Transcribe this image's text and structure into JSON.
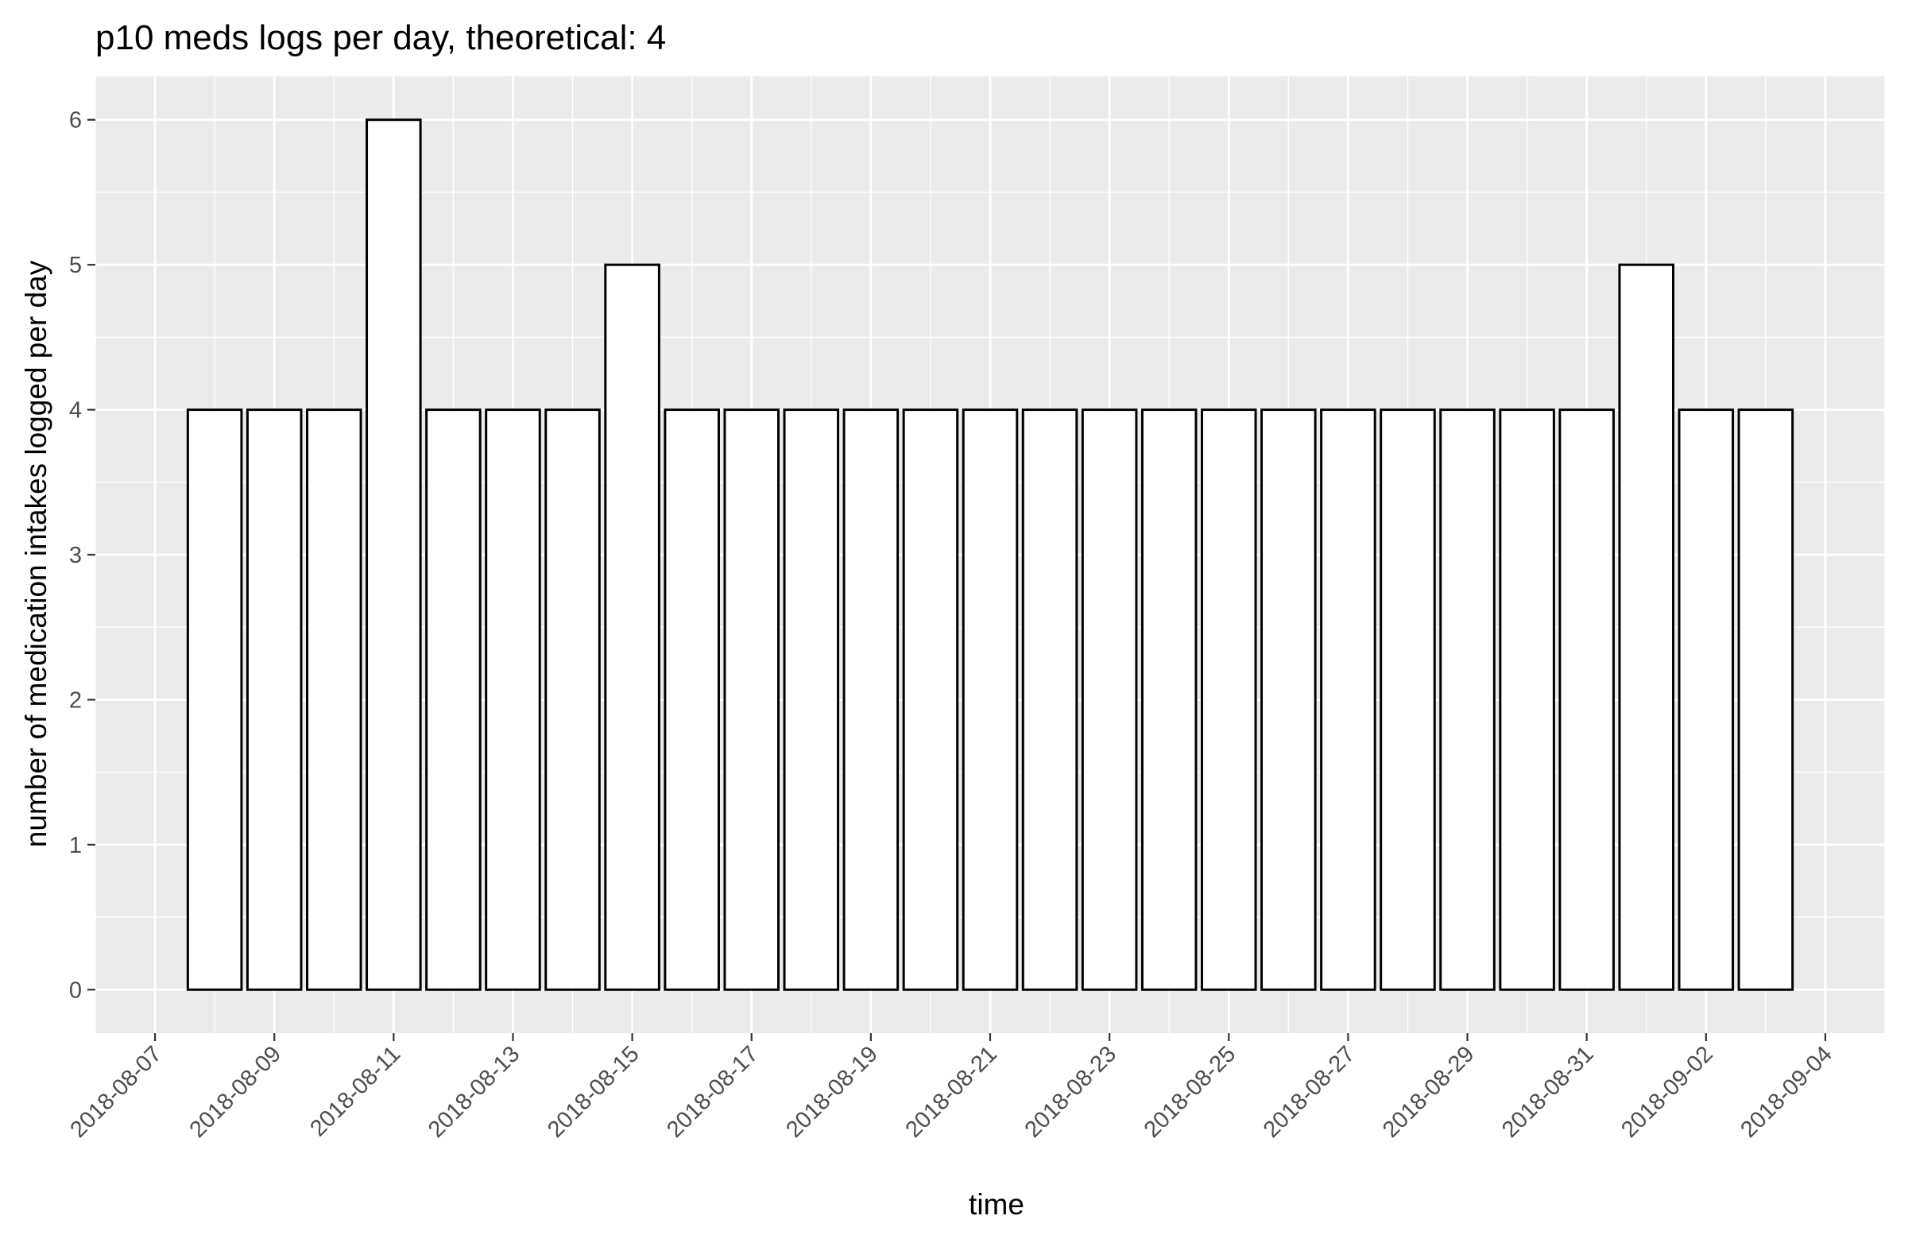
{
  "chart_data": {
    "type": "bar",
    "title": "p10 meds logs per day, theoretical: 4",
    "xlabel": "time",
    "ylabel": "number of medication intakes logged per day",
    "x": [
      "2018-08-08",
      "2018-08-09",
      "2018-08-10",
      "2018-08-11",
      "2018-08-12",
      "2018-08-13",
      "2018-08-14",
      "2018-08-15",
      "2018-08-16",
      "2018-08-17",
      "2018-08-18",
      "2018-08-19",
      "2018-08-20",
      "2018-08-21",
      "2018-08-22",
      "2018-08-23",
      "2018-08-24",
      "2018-08-25",
      "2018-08-26",
      "2018-08-27",
      "2018-08-28",
      "2018-08-29",
      "2018-08-30",
      "2018-08-31",
      "2018-09-01",
      "2018-09-02",
      "2018-09-03"
    ],
    "values": [
      4,
      4,
      4,
      6,
      4,
      4,
      4,
      5,
      4,
      4,
      4,
      4,
      4,
      4,
      4,
      4,
      4,
      4,
      4,
      4,
      4,
      4,
      4,
      4,
      5,
      4,
      4
    ],
    "xlim": [
      "2018-08-06",
      "2018-09-05"
    ],
    "ylim": [
      -0.3,
      6.3
    ],
    "x_ticks": [
      "2018-08-07",
      "2018-08-09",
      "2018-08-11",
      "2018-08-13",
      "2018-08-15",
      "2018-08-17",
      "2018-08-19",
      "2018-08-21",
      "2018-08-23",
      "2018-08-25",
      "2018-08-27",
      "2018-08-29",
      "2018-08-31",
      "2018-09-02",
      "2018-09-04"
    ],
    "y_ticks": [
      0,
      1,
      2,
      3,
      4,
      5,
      6
    ],
    "grid": true,
    "bar_fill": "#ffffff",
    "bar_outline": "#000000",
    "panel_background": "#ebebeb",
    "grid_color": "#ffffff"
  }
}
